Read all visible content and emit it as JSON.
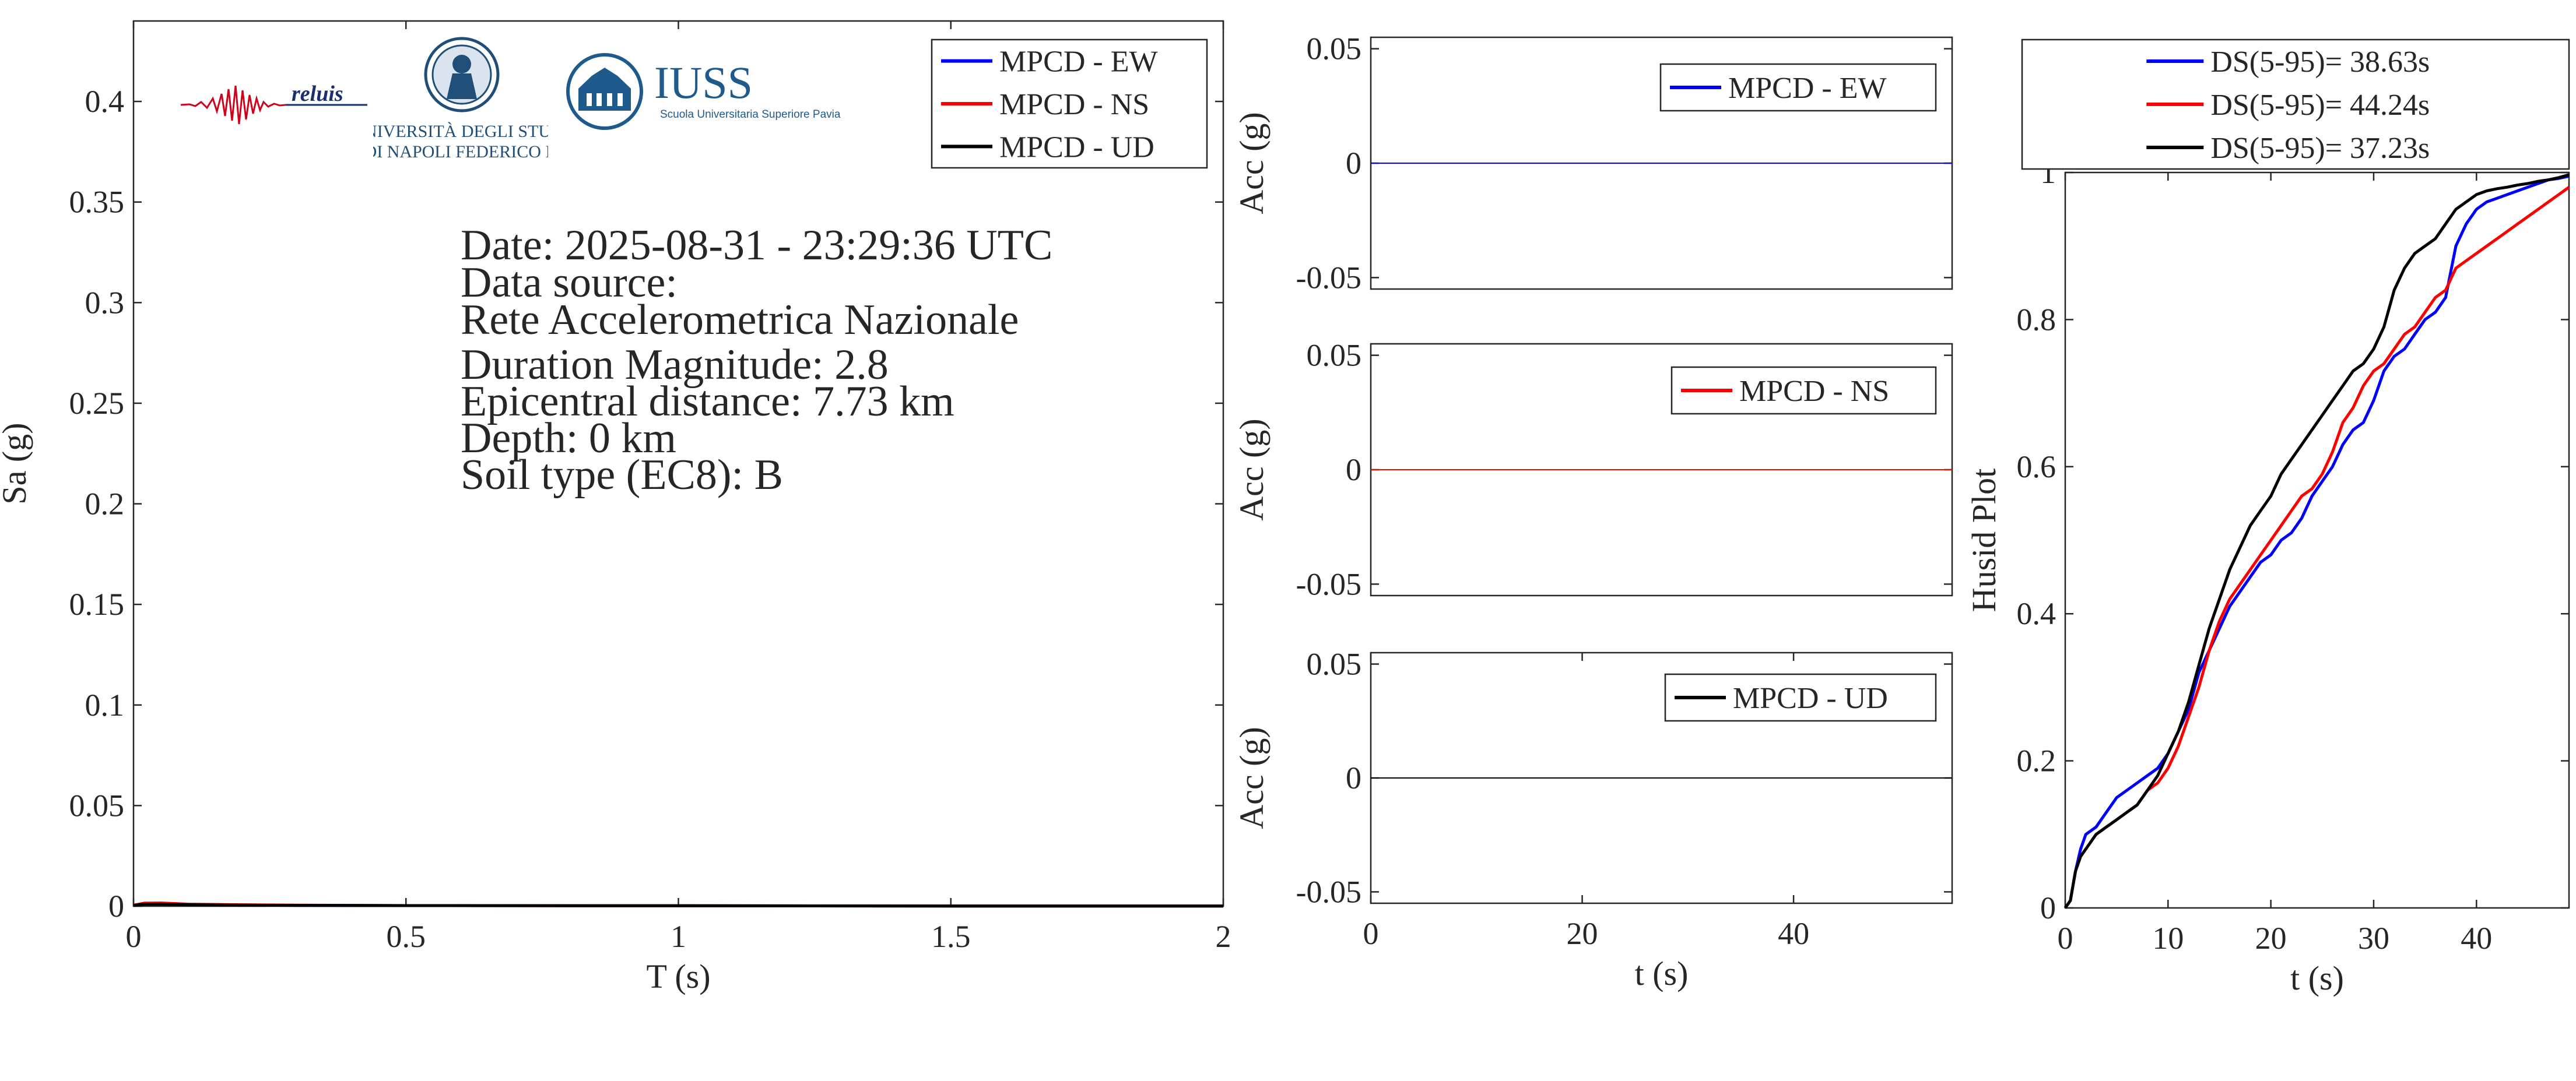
{
  "colors": {
    "ew": "#0000ff",
    "ns": "#ff0000",
    "ud": "#000000",
    "axis": "#262626"
  },
  "logos": {
    "reluis": {
      "text": "reluis"
    },
    "unina": {
      "line1": "UNIVERSITÀ DEGLI STUDI",
      "line2": "DI NAPOLI FEDERICO II"
    },
    "iuss": {
      "title": "IUSS",
      "subtitle": "Scuola Universitaria Superiore Pavia"
    }
  },
  "info": {
    "date": "Date: 2025-08-31 - 23:29:36 UTC",
    "source_label": "Data source:",
    "source": "Rete Accelerometrica Nazionale",
    "magnitude": "Duration Magnitude: 2.8",
    "distance": "Epicentral distance: 7.73 km",
    "depth": "Depth: 0 km",
    "soil": "Soil type (EC8): B"
  },
  "chart_data": [
    {
      "id": "spectrum",
      "type": "line",
      "xlabel": "T (s)",
      "ylabel": "Sa (g)",
      "xlim": [
        0,
        2
      ],
      "ylim": [
        0,
        0.44
      ],
      "xticks": [
        0,
        0.5,
        1,
        1.5,
        2
      ],
      "xtick_labels": [
        "0",
        "0.5",
        "1",
        "1.5",
        "2"
      ],
      "yticks": [
        0,
        0.05,
        0.1,
        0.15,
        0.2,
        0.25,
        0.3,
        0.35,
        0.4
      ],
      "ytick_labels": [
        "0",
        "0.05",
        "0.1",
        "0.15",
        "0.2",
        "0.25",
        "0.3",
        "0.35",
        "0.4"
      ],
      "legend_position": "top-right",
      "series": [
        {
          "name": "MPCD - EW",
          "color": "ew",
          "x": [
            0,
            0.02,
            0.05,
            0.1,
            0.2,
            0.3,
            0.5,
            1,
            1.5,
            2
          ],
          "y": [
            0.0005,
            0.0012,
            0.0013,
            0.0008,
            0.0006,
            0.0004,
            0.0003,
            0.0002,
            0.0001,
            0.0001
          ]
        },
        {
          "name": "MPCD - NS",
          "color": "ns",
          "x": [
            0,
            0.02,
            0.05,
            0.1,
            0.2,
            0.3,
            0.5,
            1,
            1.5,
            2
          ],
          "y": [
            0.0005,
            0.0015,
            0.0016,
            0.001,
            0.0007,
            0.0005,
            0.0003,
            0.0002,
            0.0001,
            0.0001
          ]
        },
        {
          "name": "MPCD - UD",
          "color": "ud",
          "x": [
            0,
            0.02,
            0.05,
            0.1,
            0.2,
            0.3,
            0.5,
            1,
            1.5,
            2
          ],
          "y": [
            0.0004,
            0.001,
            0.001,
            0.0007,
            0.0005,
            0.0004,
            0.0003,
            0.0002,
            0.0001,
            0.0001
          ]
        }
      ]
    },
    {
      "id": "acc-ew",
      "type": "line",
      "xlabel": "",
      "ylabel": "Acc (g)",
      "xlim": [
        0,
        55
      ],
      "ylim": [
        -0.055,
        0.055
      ],
      "xticks": [],
      "xtick_labels": [],
      "yticks": [
        -0.05,
        0,
        0.05
      ],
      "ytick_labels": [
        "-0.05",
        "0",
        "0.05"
      ],
      "legend_position": "top-right",
      "series": [
        {
          "name": "MPCD - EW",
          "color": "ew",
          "x": [
            0,
            55
          ],
          "y": [
            0,
            0
          ]
        }
      ]
    },
    {
      "id": "acc-ns",
      "type": "line",
      "xlabel": "",
      "ylabel": "Acc (g)",
      "xlim": [
        0,
        55
      ],
      "ylim": [
        -0.055,
        0.055
      ],
      "xticks": [],
      "xtick_labels": [],
      "yticks": [
        -0.05,
        0,
        0.05
      ],
      "ytick_labels": [
        "-0.05",
        "0",
        "0.05"
      ],
      "legend_position": "top-right",
      "series": [
        {
          "name": "MPCD - NS",
          "color": "ns",
          "x": [
            0,
            55
          ],
          "y": [
            0,
            0
          ]
        }
      ]
    },
    {
      "id": "acc-ud",
      "type": "line",
      "xlabel": "t (s)",
      "ylabel": "Acc (g)",
      "xlim": [
        0,
        55
      ],
      "ylim": [
        -0.055,
        0.055
      ],
      "xticks": [
        0,
        20,
        40
      ],
      "xtick_labels": [
        "0",
        "20",
        "40"
      ],
      "yticks": [
        -0.05,
        0,
        0.05
      ],
      "ytick_labels": [
        "-0.05",
        "0",
        "0.05"
      ],
      "legend_position": "top-right",
      "series": [
        {
          "name": "MPCD - UD",
          "color": "ud",
          "x": [
            0,
            55
          ],
          "y": [
            0,
            0
          ]
        }
      ]
    },
    {
      "id": "husid",
      "type": "line",
      "xlabel": "t (s)",
      "ylabel": "Husid Plot",
      "xlim": [
        0,
        49
      ],
      "ylim": [
        0,
        1
      ],
      "xticks": [
        0,
        10,
        20,
        30,
        40
      ],
      "xtick_labels": [
        "0",
        "10",
        "20",
        "30",
        "40"
      ],
      "yticks": [
        0,
        0.2,
        0.4,
        0.6,
        0.8,
        1
      ],
      "ytick_labels": [
        "0",
        "0.2",
        "0.4",
        "0.6",
        "0.8",
        "1"
      ],
      "legend_position": "top (outside)",
      "series": [
        {
          "name": "DS(5-95)= 38.63s",
          "color": "ew",
          "x": [
            0,
            0.5,
            1,
            1.5,
            2,
            3,
            4,
            5,
            6,
            7,
            8,
            9,
            10,
            11,
            12,
            13,
            14,
            15,
            16,
            17,
            18,
            19,
            20,
            21,
            22,
            23,
            24,
            25,
            26,
            27,
            28,
            29,
            30,
            31,
            32,
            33,
            34,
            35,
            36,
            37,
            38,
            39,
            40,
            41,
            42,
            43,
            44,
            45,
            46,
            47,
            48,
            49
          ],
          "y": [
            0,
            0.01,
            0.05,
            0.08,
            0.1,
            0.11,
            0.13,
            0.15,
            0.16,
            0.17,
            0.18,
            0.19,
            0.21,
            0.24,
            0.27,
            0.32,
            0.35,
            0.38,
            0.41,
            0.43,
            0.45,
            0.47,
            0.48,
            0.5,
            0.51,
            0.53,
            0.56,
            0.58,
            0.6,
            0.63,
            0.65,
            0.66,
            0.69,
            0.73,
            0.75,
            0.76,
            0.78,
            0.8,
            0.81,
            0.83,
            0.9,
            0.93,
            0.95,
            0.96,
            0.965,
            0.97,
            0.975,
            0.98,
            0.985,
            0.99,
            0.992,
            0.995
          ]
        },
        {
          "name": "DS(5-95)= 44.24s",
          "color": "ns",
          "x": [
            0,
            0.5,
            1,
            1.5,
            2,
            3,
            4,
            5,
            6,
            7,
            8,
            9,
            10,
            11,
            12,
            13,
            14,
            15,
            16,
            17,
            18,
            19,
            20,
            21,
            22,
            23,
            24,
            25,
            26,
            27,
            28,
            29,
            30,
            31,
            32,
            33,
            34,
            35,
            36,
            37,
            38,
            39,
            40,
            41,
            42,
            43,
            44,
            45,
            46,
            47,
            48,
            49
          ],
          "y": [
            0,
            0.01,
            0.05,
            0.07,
            0.08,
            0.1,
            0.11,
            0.12,
            0.13,
            0.14,
            0.16,
            0.17,
            0.19,
            0.22,
            0.26,
            0.3,
            0.35,
            0.39,
            0.42,
            0.44,
            0.46,
            0.48,
            0.5,
            0.52,
            0.54,
            0.56,
            0.57,
            0.59,
            0.62,
            0.66,
            0.68,
            0.71,
            0.73,
            0.74,
            0.76,
            0.78,
            0.79,
            0.81,
            0.83,
            0.84,
            0.87,
            0.88,
            0.89,
            0.9,
            0.91,
            0.92,
            0.93,
            0.94,
            0.95,
            0.96,
            0.97,
            0.98
          ]
        },
        {
          "name": "DS(5-95)= 37.23s",
          "color": "ud",
          "x": [
            0,
            0.5,
            1,
            1.5,
            2,
            3,
            4,
            5,
            6,
            7,
            8,
            9,
            10,
            11,
            12,
            13,
            14,
            15,
            16,
            17,
            18,
            19,
            20,
            21,
            22,
            23,
            24,
            25,
            26,
            27,
            28,
            29,
            30,
            31,
            32,
            33,
            34,
            35,
            36,
            37,
            38,
            39,
            40,
            41,
            42,
            43,
            44,
            45,
            46,
            47,
            48,
            49
          ],
          "y": [
            0,
            0.01,
            0.05,
            0.07,
            0.08,
            0.1,
            0.11,
            0.12,
            0.13,
            0.14,
            0.16,
            0.18,
            0.21,
            0.24,
            0.28,
            0.33,
            0.38,
            0.42,
            0.46,
            0.49,
            0.52,
            0.54,
            0.56,
            0.59,
            0.61,
            0.63,
            0.65,
            0.67,
            0.69,
            0.71,
            0.73,
            0.74,
            0.76,
            0.79,
            0.84,
            0.87,
            0.89,
            0.9,
            0.91,
            0.93,
            0.95,
            0.96,
            0.97,
            0.975,
            0.978,
            0.98,
            0.983,
            0.985,
            0.988,
            0.99,
            0.993,
            0.997
          ]
        }
      ]
    }
  ]
}
